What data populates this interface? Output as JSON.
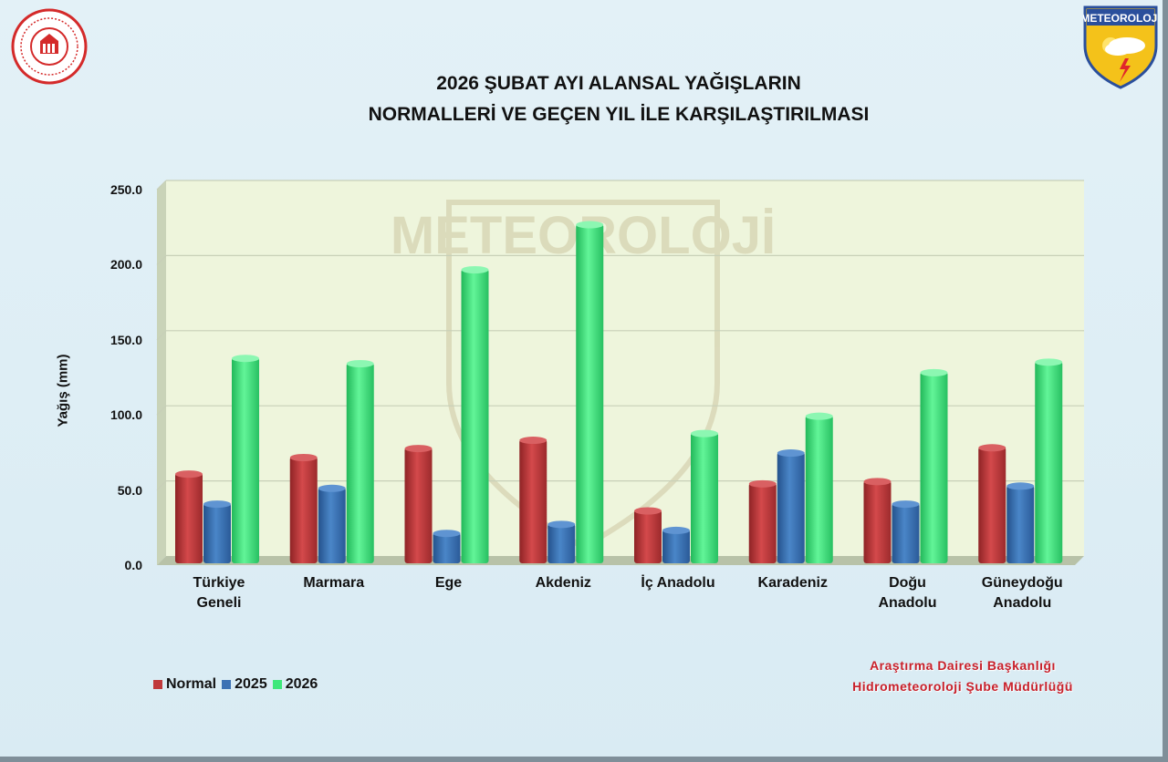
{
  "title_line1": "2026 ŞUBAT AYI ALANSAL YAĞIŞLARIN",
  "title_line2": "NORMALLERİ VE GEÇEN YIL İLE KARŞILAŞTIRILMASI",
  "credit_line1": "Araştırma Dairesi Başkanlığı",
  "credit_line2": "Hidrometeoroloji Şube Müdürlüğü",
  "logo_right_text": "METEOROLOJİ",
  "watermark_text": "METEOROLOJİ",
  "colors": {
    "normal": "#c0393b",
    "y2025": "#3d72b4",
    "y2026": "#3ee87a",
    "plot_bg": "#eef5dc",
    "credit": "#c8202a"
  },
  "chart_data": {
    "type": "bar",
    "ylabel": "Yağış (mm)",
    "xlabel": "",
    "ylim": [
      0,
      250
    ],
    "yticks": [
      "0.0",
      "50.0",
      "100.0",
      "150.0",
      "200.0",
      "250.0"
    ],
    "grid": true,
    "legend_position": "bottom-left",
    "categories": [
      [
        "Türkiye",
        "Geneli"
      ],
      [
        "Marmara"
      ],
      [
        "Ege"
      ],
      [
        "Akdeniz"
      ],
      [
        "İç Anadolu"
      ],
      [
        "Karadeniz"
      ],
      [
        "Doğu",
        "Anadolu"
      ],
      [
        "Güneydoğu",
        "Anadolu"
      ]
    ],
    "series": [
      {
        "name": "Normal",
        "values": [
          60.0,
          71.0,
          77.0,
          82.5,
          35.5,
          53.5,
          55.0,
          77.5
        ]
      },
      {
        "name": "2025",
        "values": [
          40.0,
          50.5,
          20.5,
          26.5,
          22.5,
          74.0,
          40.0,
          52.0
        ]
      },
      {
        "name": "2026",
        "values": [
          137.0,
          133.5,
          196.0,
          226.0,
          87.0,
          98.5,
          127.5,
          134.5
        ]
      }
    ]
  }
}
